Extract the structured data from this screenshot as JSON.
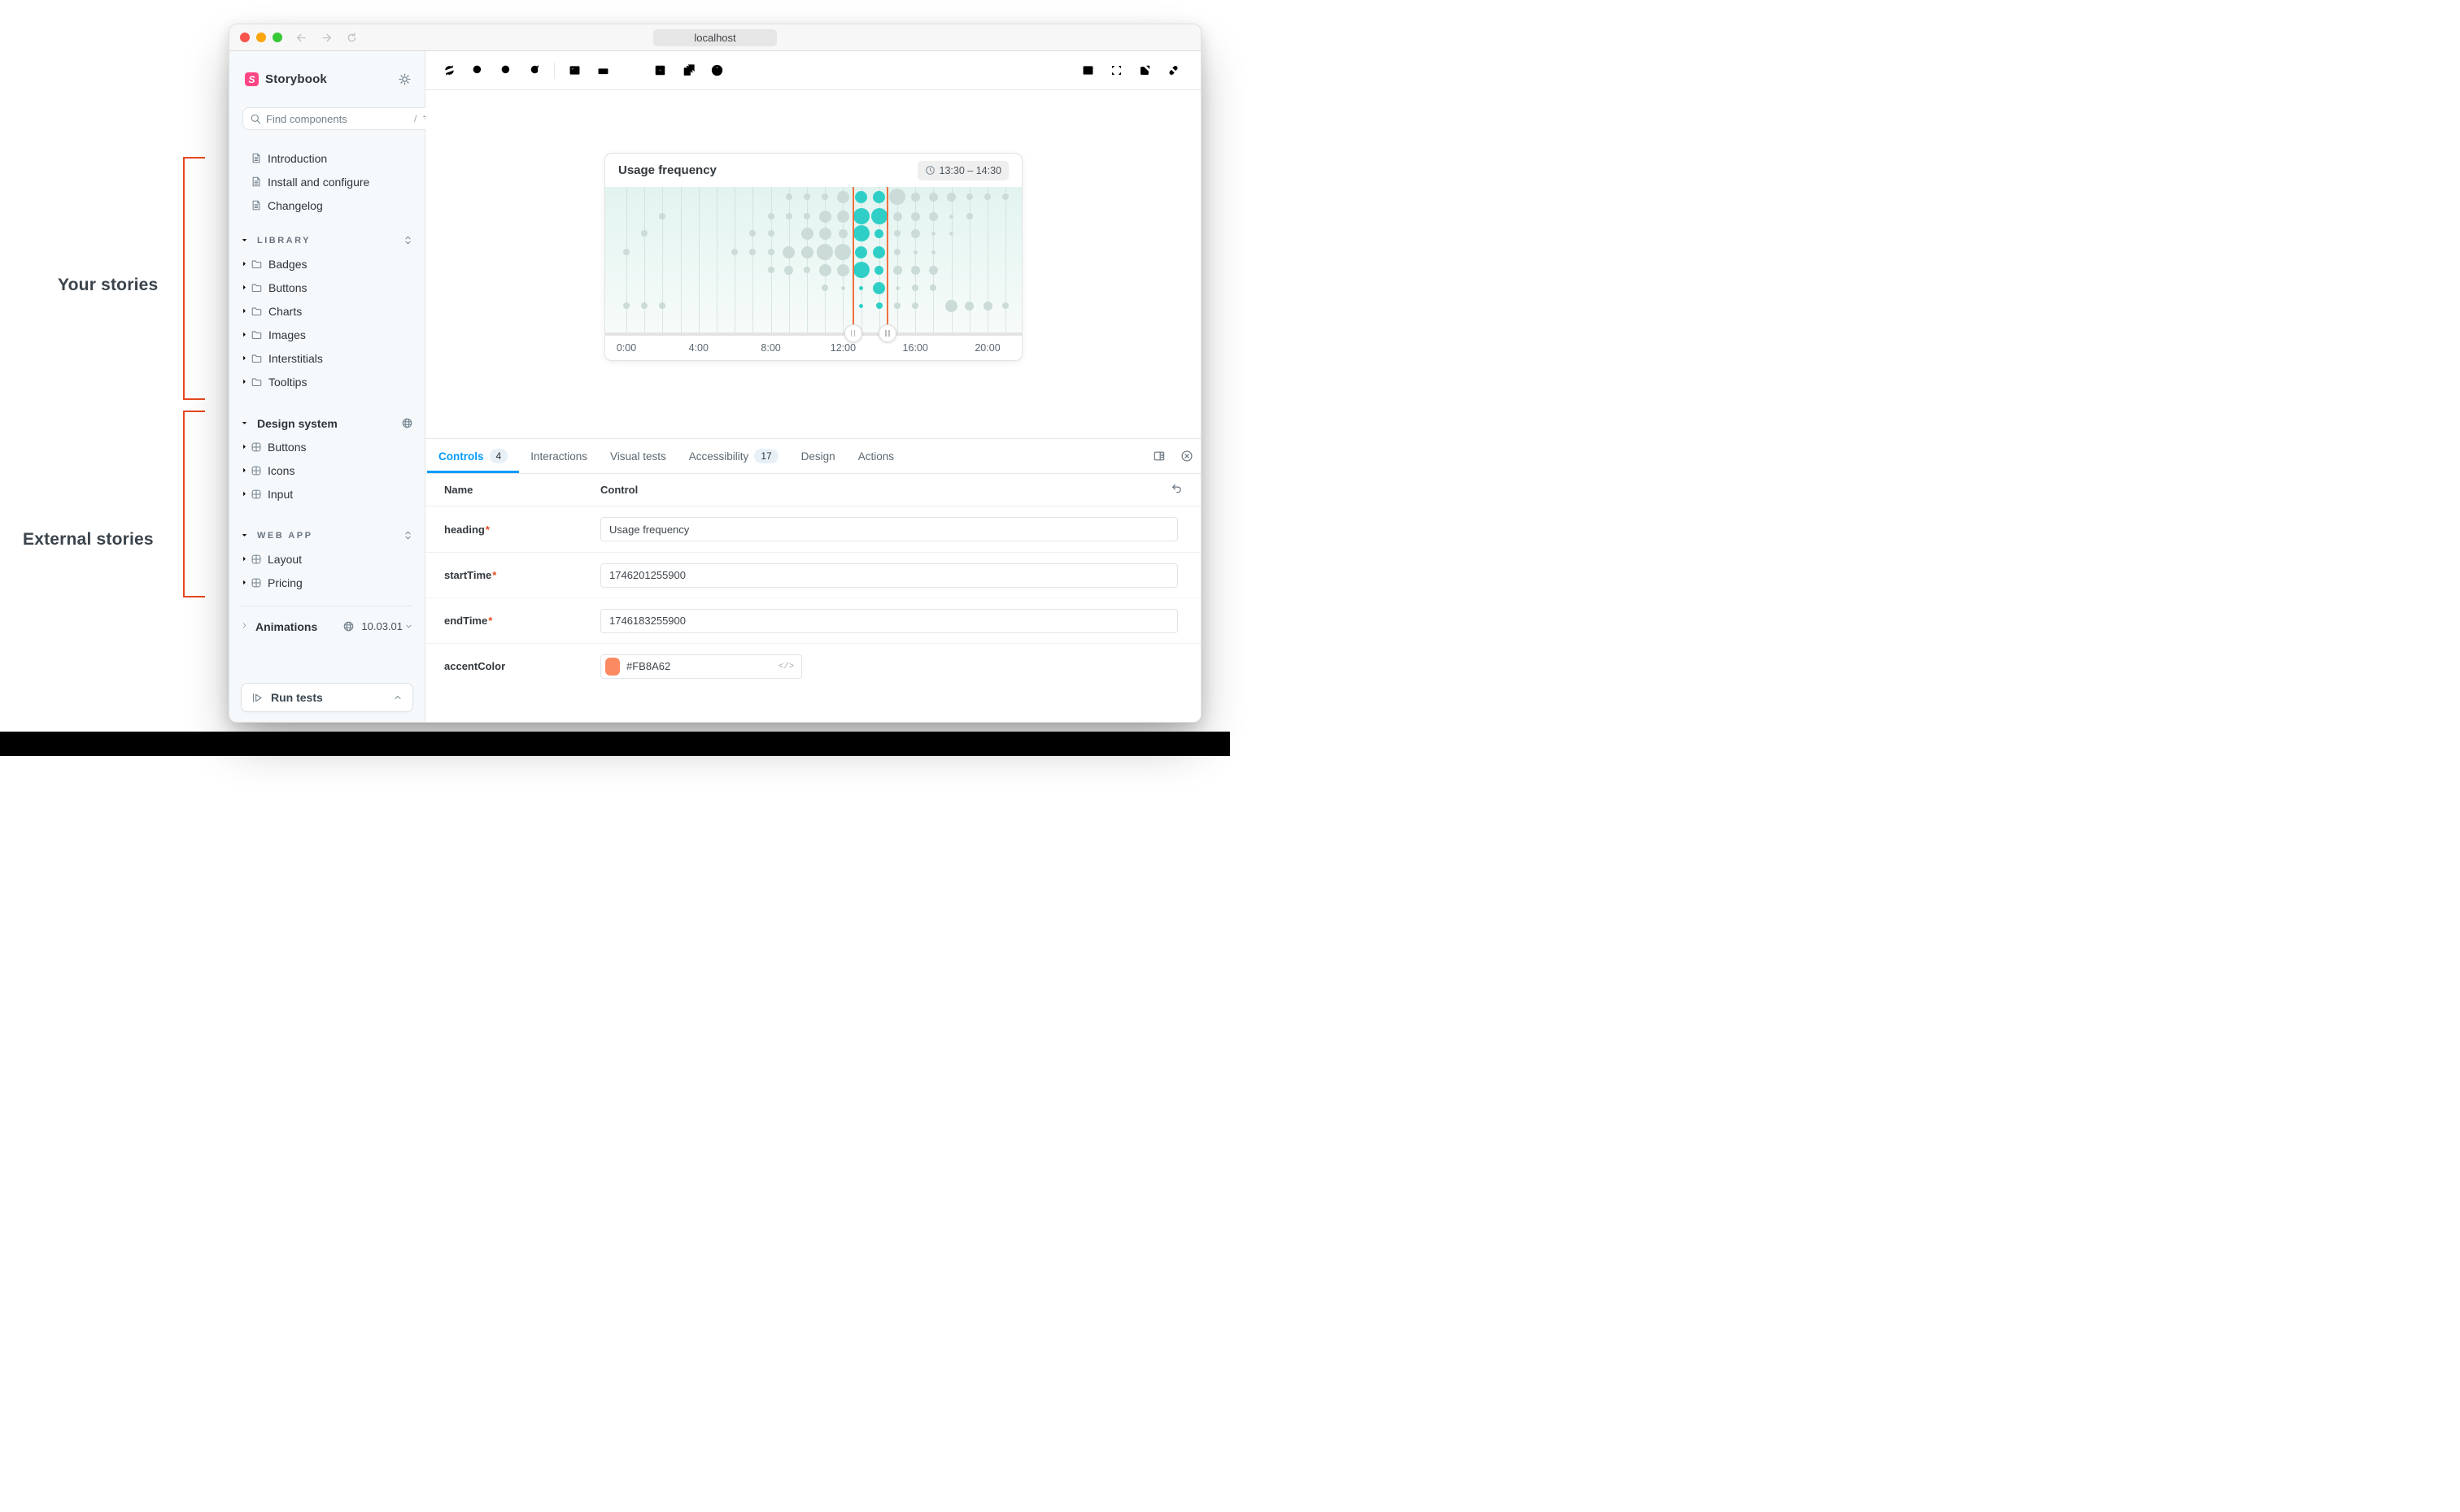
{
  "annotations": {
    "your_stories": "Your stories",
    "external_stories": "External stories"
  },
  "window": {
    "url": "localhost"
  },
  "sidebar": {
    "brand": "Storybook",
    "logo_letter": "S",
    "search": {
      "placeholder": "Find components",
      "shortcut": "/"
    },
    "docs": [
      "Introduction",
      "Install and configure",
      "Changelog"
    ],
    "library": {
      "title": "LIBRARY",
      "folders": [
        "Badges",
        "Buttons",
        "Charts",
        "Images",
        "Interstitials",
        "Tooltips"
      ]
    },
    "design_system": {
      "title": "Design system",
      "items": [
        "Buttons",
        "Icons",
        "Input"
      ]
    },
    "web_app": {
      "title": "WEB APP",
      "items": [
        "Layout",
        "Pricing"
      ]
    },
    "animations": {
      "label": "Animations",
      "version": "10.03.01"
    },
    "run_tests_label": "Run tests"
  },
  "icons": {
    "toolbar_left": [
      "remount-icon",
      "zoom-in-icon",
      "zoom-out-icon",
      "zoom-reset-icon",
      "background-icon",
      "measure-icon",
      "grid-icon",
      "outline-icon",
      "viewports-icon",
      "accessibility-icon"
    ],
    "toolbar_right": [
      "panel-toggle-icon",
      "fullscreen-icon",
      "open-external-icon",
      "story-link-icon"
    ],
    "sidebar": [
      "settings-gear-icon",
      "search-icon",
      "filter-icon",
      "plus-icon",
      "document-icon",
      "folder-icon",
      "component-icon",
      "globe-icon",
      "play-icon"
    ]
  },
  "chart_data": {
    "type": "bubble-timeline",
    "title": "Usage frequency",
    "time_range_label": "13:30 – 14:30",
    "rows": 7,
    "hours_span": [
      0,
      21
    ],
    "xticks": [
      {
        "hour": 0,
        "label": "0:00"
      },
      {
        "hour": 4,
        "label": "4:00"
      },
      {
        "hour": 8,
        "label": "8:00"
      },
      {
        "hour": 12,
        "label": "12:00"
      },
      {
        "hour": 16,
        "label": "16:00"
      },
      {
        "hour": 20,
        "label": "20:00"
      }
    ],
    "highlight_hours": [
      13,
      14
    ],
    "selection": {
      "start_hour": 12.55,
      "end_hour": 14.45
    },
    "matrix": [
      [
        0,
        0,
        0,
        2,
        0,
        0,
        2
      ],
      [
        0,
        0,
        2,
        0,
        0,
        0,
        2
      ],
      [
        0,
        2,
        0,
        0,
        0,
        0,
        2
      ],
      [
        0,
        0,
        0,
        0,
        0,
        0,
        0
      ],
      [
        0,
        0,
        0,
        0,
        0,
        0,
        0
      ],
      [
        0,
        0,
        0,
        0,
        0,
        0,
        0
      ],
      [
        0,
        0,
        0,
        2,
        0,
        0,
        0
      ],
      [
        0,
        0,
        2,
        2,
        0,
        0,
        0
      ],
      [
        0,
        2,
        2,
        2,
        2,
        0,
        0
      ],
      [
        2,
        2,
        0,
        4,
        3,
        0,
        0
      ],
      [
        2,
        2,
        4,
        4,
        2,
        0,
        0
      ],
      [
        2,
        4,
        4,
        5,
        4,
        2,
        0
      ],
      [
        4,
        4,
        3,
        5,
        4,
        1,
        0
      ],
      [
        4,
        5,
        5,
        4,
        5,
        1,
        1
      ],
      [
        4,
        5,
        3,
        4,
        3,
        4,
        2
      ],
      [
        5,
        3,
        2,
        2,
        3,
        1,
        2
      ],
      [
        3,
        3,
        3,
        1,
        3,
        2,
        2
      ],
      [
        3,
        3,
        1,
        1,
        3,
        2,
        0
      ],
      [
        3,
        1,
        1,
        0,
        0,
        0,
        4
      ],
      [
        2,
        2,
        0,
        0,
        0,
        0,
        3
      ],
      [
        2,
        0,
        0,
        0,
        0,
        0,
        3
      ],
      [
        2,
        0,
        0,
        0,
        0,
        0,
        2
      ]
    ],
    "colors": {
      "highlight": "#2FCFC7",
      "normal": "#CBDBD7",
      "selection_line": "#F2703F",
      "gridline": "#C9DAD6"
    }
  },
  "panel": {
    "tabs": [
      {
        "label": "Controls",
        "badge": "4"
      },
      {
        "label": "Interactions"
      },
      {
        "label": "Visual tests"
      },
      {
        "label": "Accessibility",
        "badge": "17"
      },
      {
        "label": "Design"
      },
      {
        "label": "Actions"
      }
    ],
    "table": {
      "name_header": "Name",
      "control_header": "Control"
    },
    "rows": [
      {
        "name": "heading",
        "required": "*",
        "value": "Usage frequency"
      },
      {
        "name": "startTime",
        "required": "*",
        "value": "1746201255900"
      },
      {
        "name": "endTime",
        "required": "*",
        "value": "1746183255900"
      },
      {
        "name": "accentColor",
        "value": "#FB8A62",
        "code_hint": "</>"
      }
    ]
  }
}
